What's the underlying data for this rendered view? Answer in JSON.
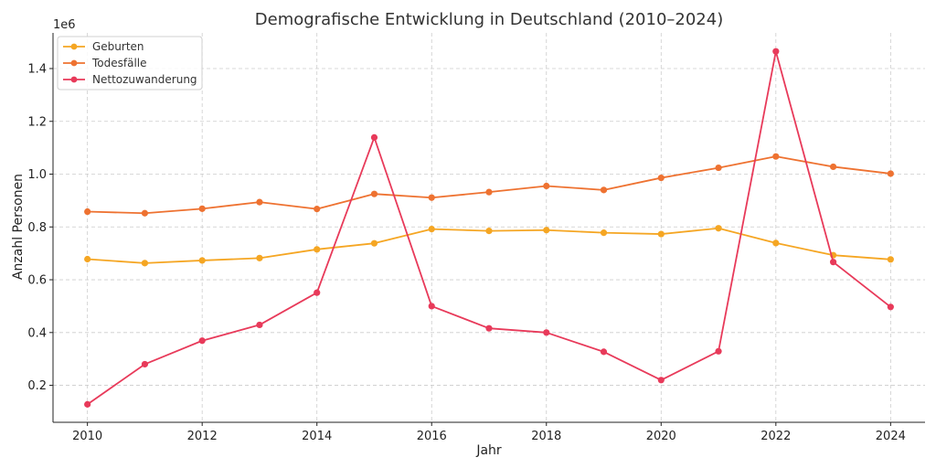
{
  "chart_data": {
    "type": "line",
    "title": "Demografische Entwicklung in Deutschland (2010–2024)",
    "xlabel": "Jahr",
    "ylabel": "Anzahl Personen",
    "y_offset_label": "1e6",
    "xlim": [
      2009.4,
      2024.6
    ],
    "ylim": [
      60000,
      1535000
    ],
    "x_ticks": [
      2010,
      2012,
      2014,
      2016,
      2018,
      2020,
      2022,
      2024
    ],
    "y_ticks": [
      200000,
      400000,
      600000,
      800000,
      1000000,
      1200000,
      1400000
    ],
    "y_tick_labels": [
      "0.2",
      "0.4",
      "0.6",
      "0.8",
      "1.0",
      "1.2",
      "1.4"
    ],
    "grid": true,
    "legend_position": "top-left",
    "x": [
      2010,
      2011,
      2012,
      2013,
      2014,
      2015,
      2016,
      2017,
      2018,
      2019,
      2020,
      2021,
      2022,
      2023,
      2024
    ],
    "series": [
      {
        "name": "Geburten",
        "color": "#f5a623",
        "values": [
          678000,
          663000,
          673000,
          682000,
          715000,
          738000,
          792000,
          785000,
          788000,
          778000,
          773000,
          795000,
          739000,
          693000,
          677000
        ]
      },
      {
        "name": "Todesfälle",
        "color": "#ee7231",
        "values": [
          858000,
          852000,
          869000,
          894000,
          868000,
          925000,
          911000,
          932000,
          955000,
          940000,
          986000,
          1024000,
          1067000,
          1028000,
          1002000
        ]
      },
      {
        "name": "Nettozuwanderung",
        "color": "#e83a5a",
        "values": [
          128000,
          280000,
          369000,
          429000,
          551000,
          1139000,
          500000,
          416000,
          400000,
          327000,
          220000,
          329000,
          1465000,
          667000,
          497000
        ]
      }
    ]
  }
}
